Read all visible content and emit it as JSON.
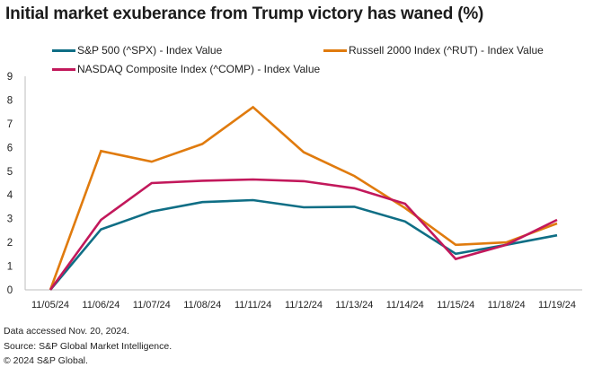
{
  "chart_data": {
    "type": "line",
    "title": "Initial market exuberance from Trump victory has waned (%)",
    "xlabel": "",
    "ylabel": "",
    "ylim": [
      0,
      9
    ],
    "yticks": [
      "0",
      "1",
      "2",
      "3",
      "4",
      "5",
      "6",
      "7",
      "8",
      "9"
    ],
    "categories": [
      "11/05/24",
      "11/06/24",
      "11/07/24",
      "11/08/24",
      "11/11/24",
      "11/12/24",
      "11/13/24",
      "11/14/24",
      "11/15/24",
      "11/18/24",
      "11/19/24"
    ],
    "grid": false,
    "legend_position": "top",
    "series": [
      {
        "name": "S&P 500 (^SPX) - Index Value",
        "color": "#0f6e85",
        "values": [
          0,
          2.55,
          3.3,
          3.7,
          3.78,
          3.48,
          3.5,
          2.88,
          1.52,
          1.9,
          2.3
        ]
      },
      {
        "name": "Russell 2000 Index (^RUT) - Index Value",
        "color": "#e07b0e",
        "values": [
          0,
          5.85,
          5.4,
          6.15,
          7.7,
          5.8,
          4.8,
          3.45,
          1.9,
          2.0,
          2.8
        ]
      },
      {
        "name": "NASDAQ Composite Index (^COMP) - Index Value",
        "color": "#c2185b",
        "values": [
          0,
          2.95,
          4.5,
          4.6,
          4.65,
          4.58,
          4.28,
          3.63,
          1.3,
          1.9,
          2.95
        ]
      }
    ]
  },
  "footer": {
    "line1": "Data accessed Nov. 20, 2024.",
    "line2": "Source: S&P Global Market Intelligence.",
    "line3": "© 2024 S&P Global."
  }
}
